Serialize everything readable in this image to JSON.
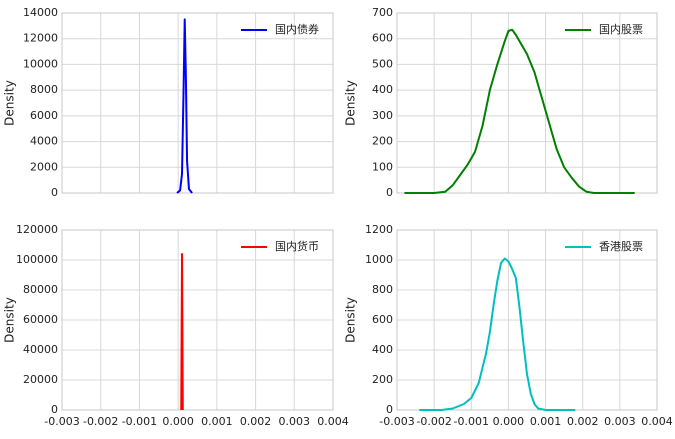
{
  "chart_data": [
    {
      "type": "line",
      "ylabel": "Density",
      "legend": "upper right",
      "grid": true,
      "xlim": [
        -0.003,
        0.004
      ],
      "xticks": [
        -0.003,
        -0.002,
        -0.001,
        {
          "value": 0,
          "label": "0.000"
        },
        0.001,
        0.002,
        0.003,
        0.004
      ],
      "ylim": [
        0,
        14000
      ],
      "yticks": [
        0,
        2000,
        4000,
        6000,
        8000,
        10000,
        12000,
        14000
      ],
      "series": [
        {
          "name": "国内债券",
          "color": "#0000ff",
          "x": [
            -3e-05,
            5e-05,
            0.0001,
            0.00014,
            0.00017,
            0.0002,
            0.00023,
            0.00028,
            0.00036
          ],
          "values": [
            0,
            200,
            1500,
            8000,
            13500,
            9000,
            2500,
            300,
            0
          ]
        }
      ]
    },
    {
      "type": "line",
      "ylabel": "Density",
      "legend": "upper right",
      "grid": true,
      "xlim": [
        -0.003,
        0.004
      ],
      "xticks": [
        -0.003,
        -0.002,
        -0.001,
        {
          "value": 0,
          "label": "0.000"
        },
        0.001,
        0.002,
        0.003,
        0.004
      ],
      "ylim": [
        0,
        700
      ],
      "yticks": [
        0,
        100,
        200,
        300,
        400,
        500,
        600,
        700
      ],
      "series": [
        {
          "name": "国内股票",
          "color": "#008000",
          "x": [
            -0.0028,
            -0.002,
            -0.0017,
            -0.0015,
            -0.0013,
            -0.0011,
            -0.0009,
            -0.0007,
            -0.0005,
            -0.0003,
            -0.0001,
            0.0,
            0.0001,
            0.0002,
            0.0003,
            0.0005,
            0.0007,
            0.0009,
            0.0011,
            0.0013,
            0.0015,
            0.0017,
            0.0019,
            0.0021,
            0.0023,
            0.0034
          ],
          "values": [
            0,
            0,
            5,
            30,
            70,
            110,
            160,
            260,
            400,
            500,
            590,
            630,
            635,
            615,
            590,
            540,
            470,
            370,
            270,
            170,
            100,
            60,
            25,
            5,
            0,
            0
          ]
        }
      ]
    },
    {
      "type": "line",
      "ylabel": "Density",
      "legend": "upper right",
      "grid": true,
      "xlim": [
        -0.003,
        0.004
      ],
      "xticks": [
        -0.003,
        -0.002,
        -0.001,
        {
          "value": 0,
          "label": "0.000"
        },
        0.001,
        0.002,
        0.003,
        0.004
      ],
      "ylim": [
        0,
        120000
      ],
      "yticks": [
        0,
        20000,
        40000,
        60000,
        80000,
        100000,
        120000
      ],
      "series": [
        {
          "name": "国内货币",
          "color": "#ff0000",
          "x": [
            8e-05,
            0.0001,
            0.00012
          ],
          "values": [
            0,
            104000,
            0
          ]
        }
      ]
    },
    {
      "type": "line",
      "ylabel": "Density",
      "legend": "upper right",
      "grid": true,
      "xlim": [
        -0.003,
        0.004
      ],
      "xticks": [
        -0.003,
        -0.002,
        -0.001,
        {
          "value": 0,
          "label": "0.000"
        },
        0.001,
        0.002,
        0.003,
        0.004
      ],
      "ylim": [
        0,
        1200
      ],
      "yticks": [
        0,
        200,
        400,
        600,
        800,
        1000,
        1200
      ],
      "series": [
        {
          "name": "香港股票",
          "color": "#00bfbf",
          "x": [
            -0.0024,
            -0.0018,
            -0.0015,
            -0.0012,
            -0.001,
            -0.0008,
            -0.0006,
            -0.0005,
            -0.0004,
            -0.0003,
            -0.0002,
            -0.0001,
            0.0,
            0.0001,
            0.0002,
            0.0003,
            0.0004,
            0.0005,
            0.0006,
            0.0007,
            0.0008,
            0.001,
            0.0018
          ],
          "values": [
            0,
            0,
            10,
            40,
            80,
            180,
            380,
            520,
            700,
            860,
            980,
            1010,
            990,
            940,
            880,
            680,
            450,
            240,
            110,
            40,
            10,
            0,
            0
          ]
        }
      ]
    }
  ]
}
